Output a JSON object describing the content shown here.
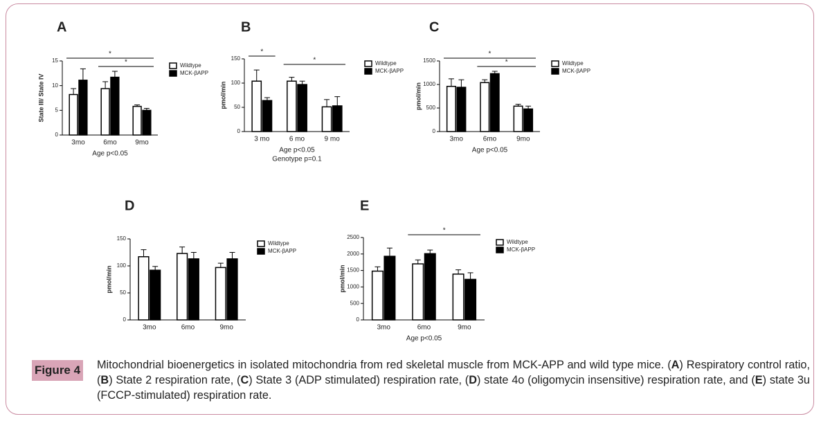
{
  "chart_data": [
    {
      "type": "bar",
      "title": "A",
      "ylabel": "State III/ State IV",
      "categories": [
        "3mo",
        "6mo",
        "9mo"
      ],
      "series": [
        {
          "name": "Wildtype",
          "color": "#ffffff",
          "values": [
            8.2,
            9.4,
            5.8
          ],
          "errors": [
            1.2,
            1.4,
            0.3
          ]
        },
        {
          "name": "MCK-βAPP",
          "color": "#000000",
          "values": [
            11.1,
            11.7,
            5.0
          ],
          "errors": [
            2.3,
            1.2,
            0.4
          ]
        }
      ],
      "ylim": [
        0,
        15
      ],
      "yticks": [
        0,
        5,
        10,
        15
      ],
      "notes": [
        "Age p<0.05"
      ],
      "significance": [
        {
          "label": "*",
          "from": 0,
          "to": 2
        },
        {
          "label": "*",
          "from": 1,
          "to": 2
        }
      ]
    },
    {
      "type": "bar",
      "title": "B",
      "ylabel": "pmol/min",
      "categories": [
        "3 mo",
        "6 mo",
        "9 mo"
      ],
      "series": [
        {
          "name": "Wildtype",
          "color": "#ffffff",
          "values": [
            104,
            104,
            51
          ],
          "errors": [
            23,
            8,
            15
          ]
        },
        {
          "name": "MCK-βAPP",
          "color": "#000000",
          "values": [
            64,
            97,
            53
          ],
          "errors": [
            6,
            7,
            19
          ]
        }
      ],
      "ylim": [
        0,
        150
      ],
      "yticks": [
        0,
        50,
        100,
        150
      ],
      "notes": [
        "Age p<0.05",
        "Genotype p=0.1"
      ],
      "significance": [
        {
          "label": "*",
          "from": 0,
          "to": 0
        },
        {
          "label": "*",
          "from": 1,
          "to": 2
        }
      ]
    },
    {
      "type": "bar",
      "title": "C",
      "ylabel": "pmol/min",
      "categories": [
        "3mo",
        "6mo",
        "9mo"
      ],
      "series": [
        {
          "name": "Wildtype",
          "color": "#ffffff",
          "values": [
            960,
            1040,
            540
          ],
          "errors": [
            160,
            60,
            40
          ]
        },
        {
          "name": "MCK-βAPP",
          "color": "#000000",
          "values": [
            940,
            1230,
            480
          ],
          "errors": [
            160,
            50,
            60
          ]
        }
      ],
      "ylim": [
        0,
        1500
      ],
      "yticks": [
        0,
        500,
        1000,
        1500
      ],
      "notes": [
        "Age p<0.05"
      ],
      "significance": [
        {
          "label": "*",
          "from": 0,
          "to": 2
        },
        {
          "label": "*",
          "from": 1,
          "to": 2
        }
      ]
    },
    {
      "type": "bar",
      "title": "D",
      "ylabel": "pmol/min",
      "categories": [
        "3mo",
        "6mo",
        "9mo"
      ],
      "series": [
        {
          "name": "Wildtype",
          "color": "#ffffff",
          "values": [
            117,
            123,
            97
          ],
          "errors": [
            13,
            12,
            8
          ]
        },
        {
          "name": "MCK-βAPP",
          "color": "#000000",
          "values": [
            92,
            113,
            113
          ],
          "errors": [
            7,
            12,
            12
          ]
        }
      ],
      "ylim": [
        0,
        150
      ],
      "yticks": [
        0,
        50,
        100,
        150
      ],
      "notes": [],
      "significance": []
    },
    {
      "type": "bar",
      "title": "E",
      "ylabel": "pmol/min",
      "categories": [
        "3mo",
        "6mo",
        "9mo"
      ],
      "series": [
        {
          "name": "Wildtype",
          "color": "#ffffff",
          "values": [
            1480,
            1700,
            1390
          ],
          "errors": [
            130,
            120,
            130
          ]
        },
        {
          "name": "MCK-βAPP",
          "color": "#000000",
          "values": [
            1930,
            2010,
            1230
          ],
          "errors": [
            250,
            110,
            200
          ]
        }
      ],
      "ylim": [
        0,
        2500
      ],
      "yticks": [
        0,
        500,
        1000,
        1500,
        2000,
        2500
      ],
      "notes": [
        "Age p<0.05"
      ],
      "significance": [
        {
          "label": "*",
          "from": 1,
          "to": 2
        }
      ]
    }
  ],
  "caption": {
    "label": "Figure 4",
    "parts": [
      "Mitochondrial bioenergetics in isolated mitochondria from red skeletal muscle from MCK-APP and wild type mice. (",
      "A",
      ") Respiratory control ratio, (",
      "B",
      ") State 2 respiration rate, (",
      "C",
      ") State 3 (ADP stimulated) respiration rate, (",
      "D",
      ") state 4o (oligomycin insensitive) respiration rate, and (",
      "E",
      ") state 3u (FCCP-stimulated) respiration rate."
    ]
  }
}
